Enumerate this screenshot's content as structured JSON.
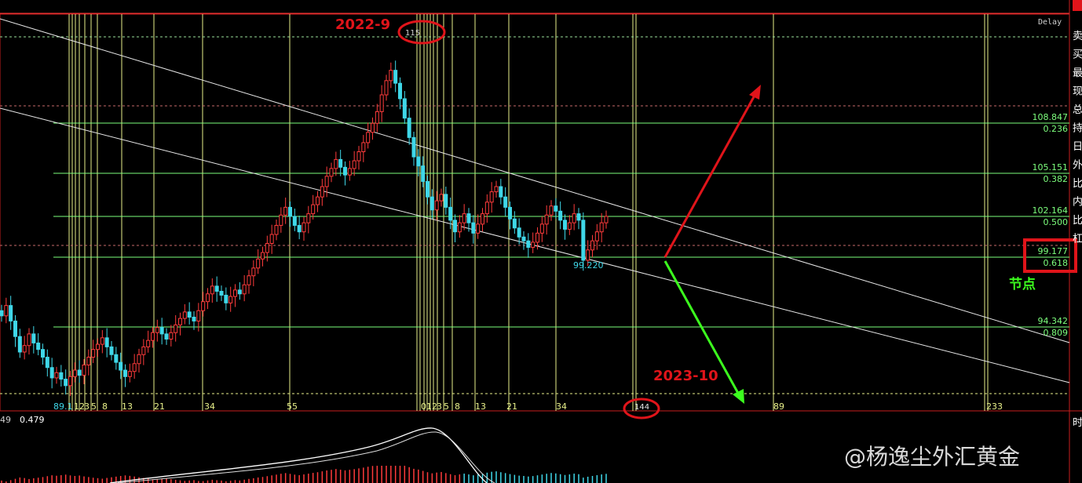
{
  "header": {
    "delay_label": "Delay"
  },
  "annotations": {
    "top_date": "2022-9",
    "bottom_date": "2023-10",
    "node_label": "节点",
    "peak_label": "115",
    "bottom_circle_label": "144"
  },
  "right_panel": {
    "chars": [
      "卖",
      "买",
      "最",
      "现",
      "总",
      "持",
      "日",
      "外",
      "比",
      "内",
      "比",
      "杠",
      "时"
    ],
    "lower_char": "时"
  },
  "fib_levels": [
    {
      "price": "108.847",
      "ratio": "0.236"
    },
    {
      "price": "105.151",
      "ratio": "0.382"
    },
    {
      "price": "102.164",
      "ratio": "0.500"
    },
    {
      "price": "99.177",
      "ratio": "0.618"
    },
    {
      "price": "94.342",
      "ratio": "0.809"
    }
  ],
  "low_label": "99.220",
  "start_label": "89.1",
  "fib_time_left": [
    "12",
    "3",
    "5",
    "8",
    "13",
    "21",
    "34",
    "55"
  ],
  "fib_time_right": [
    "012",
    "3",
    "5",
    "8",
    "13",
    "21",
    "34",
    "89",
    "233"
  ],
  "indicator": {
    "left_value": "49",
    "value": "0.479"
  },
  "watermark": "@杨逸尘外汇黄金",
  "colors": {
    "up": "#ff3b3b",
    "down": "#3fd7e8",
    "fib": "#7dff7d",
    "red_mark": "#e0141a",
    "green_arrow": "#3cff1e"
  },
  "chart_data": {
    "type": "candlestick",
    "title": "",
    "ylim": [
      89,
      116
    ],
    "candles_close": [
      95.2,
      96.0,
      94.8,
      93.6,
      92.4,
      92.9,
      93.8,
      93.1,
      92.6,
      92.0,
      91.2,
      90.4,
      90.8,
      90.3,
      89.8,
      90.5,
      91.0,
      90.6,
      91.4,
      92.0,
      92.6,
      93.0,
      93.5,
      92.8,
      92.2,
      91.6,
      91.0,
      90.5,
      90.9,
      91.5,
      92.2,
      92.8,
      93.3,
      93.9,
      94.3,
      93.8,
      93.4,
      93.9,
      94.5,
      95.0,
      95.5,
      95.1,
      94.8,
      95.6,
      96.3,
      96.9,
      97.5,
      97.1,
      96.8,
      96.2,
      96.7,
      97.2,
      96.9,
      97.6,
      98.3,
      98.9,
      99.6,
      100.1,
      100.8,
      101.5,
      102.2,
      103.0,
      103.6,
      102.9,
      102.2,
      101.7,
      102.4,
      103.1,
      103.8,
      104.4,
      105.2,
      106.0,
      106.6,
      107.3,
      106.7,
      106.1,
      106.6,
      107.2,
      107.9,
      108.6,
      109.4,
      110.1,
      111.0,
      112.3,
      113.4,
      114.2,
      113.2,
      112.0,
      110.5,
      109.0,
      107.5,
      106.8,
      105.6,
      104.4,
      103.4,
      104.1,
      104.6,
      103.6,
      102.6,
      101.7,
      102.4,
      103.1,
      102.4,
      101.6,
      102.3,
      103.1,
      104.0,
      104.8,
      105.2,
      104.4,
      103.6,
      102.7,
      102.0,
      101.3,
      101.0,
      100.5,
      100.9,
      101.6,
      102.3,
      103.0,
      103.7,
      103.3,
      102.6,
      101.9,
      102.4,
      103.1,
      102.6,
      99.5,
      100.3,
      101.0,
      101.7,
      102.4,
      102.9
    ]
  }
}
